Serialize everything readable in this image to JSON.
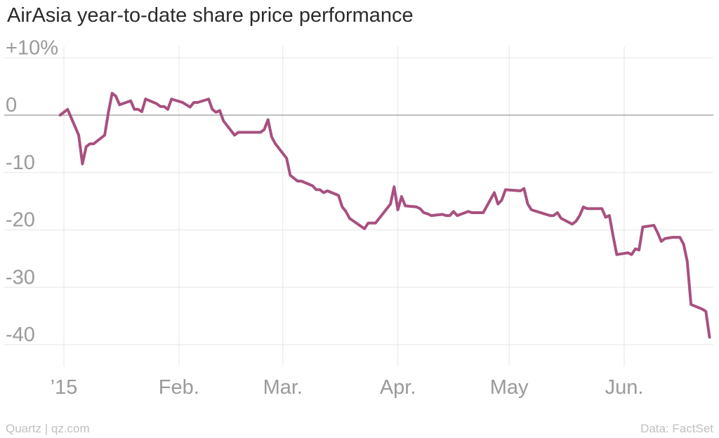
{
  "header": {
    "title": "AirAsia year-to-date share price performance"
  },
  "footer": {
    "credit": "Quartz | qz.com",
    "source": "Data: FactSet"
  },
  "colors": {
    "line": "#a8507f",
    "grid": "#e6e6e6",
    "zero": "#999999",
    "tick": "#9a9a9a"
  },
  "chart_data": {
    "type": "line",
    "title": "AirAsia year-to-date share price performance",
    "xlabel": "",
    "ylabel": "",
    "xlim": [
      "2014-12-31",
      "2015-06-24"
    ],
    "ylim": [
      -44,
      12
    ],
    "grid": true,
    "legend": "none",
    "x_ticks": [
      {
        "date": "2015-01-01",
        "label": "’15"
      },
      {
        "date": "2015-02-01",
        "label": "Feb."
      },
      {
        "date": "2015-03-01",
        "label": "Mar."
      },
      {
        "date": "2015-04-01",
        "label": "Apr."
      },
      {
        "date": "2015-05-01",
        "label": "May"
      },
      {
        "date": "2015-06-01",
        "label": "Jun."
      }
    ],
    "y_ticks": [
      {
        "value": 10,
        "label": "+10%"
      },
      {
        "value": 0,
        "label": "0"
      },
      {
        "value": -10,
        "label": "-10"
      },
      {
        "value": -20,
        "label": "-20"
      },
      {
        "value": -30,
        "label": "-30"
      },
      {
        "value": -40,
        "label": "-40"
      }
    ],
    "series": [
      {
        "points": [
          [
            "2014-12-31",
            0
          ],
          [
            "2015-01-02",
            1.0
          ],
          [
            "2015-01-05",
            -3.5
          ],
          [
            "2015-01-06",
            -8.5
          ],
          [
            "2015-01-07",
            -5.5
          ],
          [
            "2015-01-08",
            -5.0
          ],
          [
            "2015-01-09",
            -5.0
          ],
          [
            "2015-01-12",
            -3.5
          ],
          [
            "2015-01-13",
            0.5
          ],
          [
            "2015-01-14",
            3.8
          ],
          [
            "2015-01-15",
            3.3
          ],
          [
            "2015-01-16",
            1.8
          ],
          [
            "2015-01-19",
            2.5
          ],
          [
            "2015-01-20",
            1.0
          ],
          [
            "2015-01-21",
            1.0
          ],
          [
            "2015-01-22",
            0.6
          ],
          [
            "2015-01-23",
            2.8
          ],
          [
            "2015-01-26",
            2.0
          ],
          [
            "2015-01-27",
            1.5
          ],
          [
            "2015-01-28",
            1.5
          ],
          [
            "2015-01-29",
            1.0
          ],
          [
            "2015-01-30",
            2.8
          ],
          [
            "2015-02-02",
            2.2
          ],
          [
            "2015-02-03",
            1.8
          ],
          [
            "2015-02-04",
            1.4
          ],
          [
            "2015-02-05",
            2.2
          ],
          [
            "2015-02-06",
            2.2
          ],
          [
            "2015-02-09",
            2.8
          ],
          [
            "2015-02-10",
            1.0
          ],
          [
            "2015-02-11",
            0.5
          ],
          [
            "2015-02-12",
            0.8
          ],
          [
            "2015-02-13",
            -1.0
          ],
          [
            "2015-02-16",
            -3.5
          ],
          [
            "2015-02-17",
            -3.0
          ],
          [
            "2015-02-23",
            -3.0
          ],
          [
            "2015-02-24",
            -2.5
          ],
          [
            "2015-02-25",
            -0.8
          ],
          [
            "2015-02-26",
            -3.8
          ],
          [
            "2015-02-27",
            -5.0
          ],
          [
            "2015-03-02",
            -7.5
          ],
          [
            "2015-03-03",
            -10.5
          ],
          [
            "2015-03-04",
            -11.0
          ],
          [
            "2015-03-05",
            -11.5
          ],
          [
            "2015-03-06",
            -11.5
          ],
          [
            "2015-03-09",
            -12.3
          ],
          [
            "2015-03-10",
            -13.0
          ],
          [
            "2015-03-11",
            -13.0
          ],
          [
            "2015-03-12",
            -13.5
          ],
          [
            "2015-03-13",
            -13.2
          ],
          [
            "2015-03-16",
            -14.0
          ],
          [
            "2015-03-17",
            -16.0
          ],
          [
            "2015-03-18",
            -16.8
          ],
          [
            "2015-03-19",
            -18.0
          ],
          [
            "2015-03-23",
            -19.8
          ],
          [
            "2015-03-24",
            -18.8
          ],
          [
            "2015-03-26",
            -18.8
          ],
          [
            "2015-03-30",
            -15.5
          ],
          [
            "2015-03-31",
            -12.5
          ],
          [
            "2015-04-01",
            -16.5
          ],
          [
            "2015-04-02",
            -14.2
          ],
          [
            "2015-04-03",
            -15.8
          ],
          [
            "2015-04-06",
            -16.0
          ],
          [
            "2015-04-07",
            -16.3
          ],
          [
            "2015-04-08",
            -17.0
          ],
          [
            "2015-04-09",
            -17.2
          ],
          [
            "2015-04-10",
            -17.5
          ],
          [
            "2015-04-13",
            -17.3
          ],
          [
            "2015-04-14",
            -17.5
          ],
          [
            "2015-04-15",
            -17.5
          ],
          [
            "2015-04-16",
            -16.8
          ],
          [
            "2015-04-17",
            -17.5
          ],
          [
            "2015-04-20",
            -16.8
          ],
          [
            "2015-04-21",
            -17.0
          ],
          [
            "2015-04-24",
            -17.0
          ],
          [
            "2015-04-27",
            -13.5
          ],
          [
            "2015-04-28",
            -15.5
          ],
          [
            "2015-04-29",
            -14.8
          ],
          [
            "2015-04-30",
            -13.0
          ],
          [
            "2015-05-04",
            -13.2
          ],
          [
            "2015-05-05",
            -12.8
          ],
          [
            "2015-05-06",
            -15.5
          ],
          [
            "2015-05-07",
            -16.5
          ],
          [
            "2015-05-12",
            -17.5
          ],
          [
            "2015-05-13",
            -17.5
          ],
          [
            "2015-05-14",
            -17.0
          ],
          [
            "2015-05-15",
            -18.0
          ],
          [
            "2015-05-18",
            -19.0
          ],
          [
            "2015-05-19",
            -18.5
          ],
          [
            "2015-05-20",
            -17.5
          ],
          [
            "2015-05-21",
            -16.0
          ],
          [
            "2015-05-22",
            -16.3
          ],
          [
            "2015-05-26",
            -16.3
          ],
          [
            "2015-05-27",
            -17.8
          ],
          [
            "2015-05-28",
            -17.5
          ],
          [
            "2015-05-29",
            -21.0
          ],
          [
            "2015-05-30",
            -24.3
          ],
          [
            "2015-06-02",
            -24.0
          ],
          [
            "2015-06-03",
            -24.3
          ],
          [
            "2015-06-04",
            -23.3
          ],
          [
            "2015-06-05",
            -23.5
          ],
          [
            "2015-06-06",
            -19.5
          ],
          [
            "2015-06-08",
            -19.3
          ],
          [
            "2015-06-09",
            -19.2
          ],
          [
            "2015-06-10",
            -20.5
          ],
          [
            "2015-06-11",
            -22.0
          ],
          [
            "2015-06-12",
            -21.5
          ],
          [
            "2015-06-14",
            -21.3
          ],
          [
            "2015-06-16",
            -21.3
          ],
          [
            "2015-06-17",
            -22.5
          ],
          [
            "2015-06-18",
            -25.5
          ],
          [
            "2015-06-19",
            -33.0
          ],
          [
            "2015-06-22",
            -33.8
          ],
          [
            "2015-06-23",
            -34.2
          ],
          [
            "2015-06-24",
            -38.7
          ]
        ]
      }
    ]
  }
}
